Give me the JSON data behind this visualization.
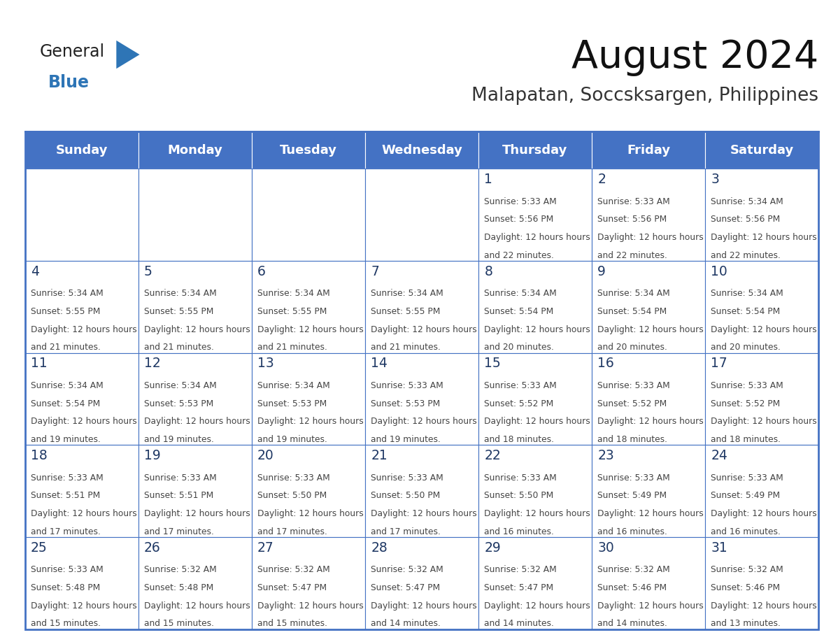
{
  "title": "August 2024",
  "subtitle": "Malapatan, Soccsksargen, Philippines",
  "days_of_week": [
    "Sunday",
    "Monday",
    "Tuesday",
    "Wednesday",
    "Thursday",
    "Friday",
    "Saturday"
  ],
  "header_bg": "#4472C4",
  "header_text": "#FFFFFF",
  "day_number_color": "#1F3864",
  "text_color": "#444444",
  "border_color": "#4472C4",
  "logo_general_color": "#222222",
  "logo_blue_color": "#2E75B6",
  "calendar_data": [
    [
      null,
      null,
      null,
      null,
      {
        "day": 1,
        "sunrise": "5:33 AM",
        "sunset": "5:56 PM",
        "daylight": "12 hours and 22 minutes"
      },
      {
        "day": 2,
        "sunrise": "5:33 AM",
        "sunset": "5:56 PM",
        "daylight": "12 hours and 22 minutes"
      },
      {
        "day": 3,
        "sunrise": "5:34 AM",
        "sunset": "5:56 PM",
        "daylight": "12 hours and 22 minutes"
      }
    ],
    [
      {
        "day": 4,
        "sunrise": "5:34 AM",
        "sunset": "5:55 PM",
        "daylight": "12 hours and 21 minutes"
      },
      {
        "day": 5,
        "sunrise": "5:34 AM",
        "sunset": "5:55 PM",
        "daylight": "12 hours and 21 minutes"
      },
      {
        "day": 6,
        "sunrise": "5:34 AM",
        "sunset": "5:55 PM",
        "daylight": "12 hours and 21 minutes"
      },
      {
        "day": 7,
        "sunrise": "5:34 AM",
        "sunset": "5:55 PM",
        "daylight": "12 hours and 21 minutes"
      },
      {
        "day": 8,
        "sunrise": "5:34 AM",
        "sunset": "5:54 PM",
        "daylight": "12 hours and 20 minutes"
      },
      {
        "day": 9,
        "sunrise": "5:34 AM",
        "sunset": "5:54 PM",
        "daylight": "12 hours and 20 minutes"
      },
      {
        "day": 10,
        "sunrise": "5:34 AM",
        "sunset": "5:54 PM",
        "daylight": "12 hours and 20 minutes"
      }
    ],
    [
      {
        "day": 11,
        "sunrise": "5:34 AM",
        "sunset": "5:54 PM",
        "daylight": "12 hours and 19 minutes"
      },
      {
        "day": 12,
        "sunrise": "5:34 AM",
        "sunset": "5:53 PM",
        "daylight": "12 hours and 19 minutes"
      },
      {
        "day": 13,
        "sunrise": "5:34 AM",
        "sunset": "5:53 PM",
        "daylight": "12 hours and 19 minutes"
      },
      {
        "day": 14,
        "sunrise": "5:33 AM",
        "sunset": "5:53 PM",
        "daylight": "12 hours and 19 minutes"
      },
      {
        "day": 15,
        "sunrise": "5:33 AM",
        "sunset": "5:52 PM",
        "daylight": "12 hours and 18 minutes"
      },
      {
        "day": 16,
        "sunrise": "5:33 AM",
        "sunset": "5:52 PM",
        "daylight": "12 hours and 18 minutes"
      },
      {
        "day": 17,
        "sunrise": "5:33 AM",
        "sunset": "5:52 PM",
        "daylight": "12 hours and 18 minutes"
      }
    ],
    [
      {
        "day": 18,
        "sunrise": "5:33 AM",
        "sunset": "5:51 PM",
        "daylight": "12 hours and 17 minutes"
      },
      {
        "day": 19,
        "sunrise": "5:33 AM",
        "sunset": "5:51 PM",
        "daylight": "12 hours and 17 minutes"
      },
      {
        "day": 20,
        "sunrise": "5:33 AM",
        "sunset": "5:50 PM",
        "daylight": "12 hours and 17 minutes"
      },
      {
        "day": 21,
        "sunrise": "5:33 AM",
        "sunset": "5:50 PM",
        "daylight": "12 hours and 17 minutes"
      },
      {
        "day": 22,
        "sunrise": "5:33 AM",
        "sunset": "5:50 PM",
        "daylight": "12 hours and 16 minutes"
      },
      {
        "day": 23,
        "sunrise": "5:33 AM",
        "sunset": "5:49 PM",
        "daylight": "12 hours and 16 minutes"
      },
      {
        "day": 24,
        "sunrise": "5:33 AM",
        "sunset": "5:49 PM",
        "daylight": "12 hours and 16 minutes"
      }
    ],
    [
      {
        "day": 25,
        "sunrise": "5:33 AM",
        "sunset": "5:48 PM",
        "daylight": "12 hours and 15 minutes"
      },
      {
        "day": 26,
        "sunrise": "5:32 AM",
        "sunset": "5:48 PM",
        "daylight": "12 hours and 15 minutes"
      },
      {
        "day": 27,
        "sunrise": "5:32 AM",
        "sunset": "5:47 PM",
        "daylight": "12 hours and 15 minutes"
      },
      {
        "day": 28,
        "sunrise": "5:32 AM",
        "sunset": "5:47 PM",
        "daylight": "12 hours and 14 minutes"
      },
      {
        "day": 29,
        "sunrise": "5:32 AM",
        "sunset": "5:47 PM",
        "daylight": "12 hours and 14 minutes"
      },
      {
        "day": 30,
        "sunrise": "5:32 AM",
        "sunset": "5:46 PM",
        "daylight": "12 hours and 14 minutes"
      },
      {
        "day": 31,
        "sunrise": "5:32 AM",
        "sunset": "5:46 PM",
        "daylight": "12 hours and 13 minutes"
      }
    ]
  ]
}
